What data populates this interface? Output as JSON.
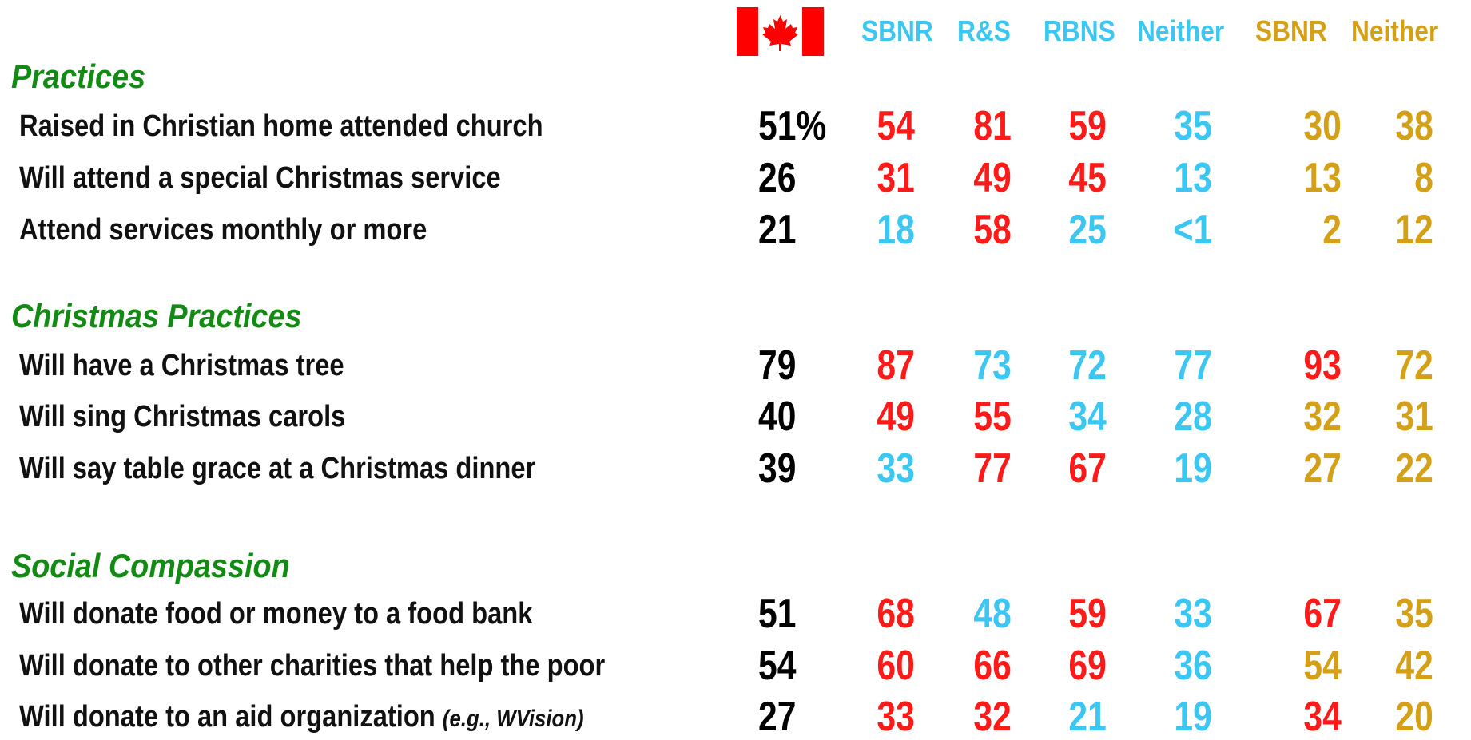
{
  "header": {
    "columns": [
      {
        "text": "SBNR",
        "color": "#3cc6f2"
      },
      {
        "text": "R&S",
        "color": "#3cc6f2"
      },
      {
        "text": "RBNS",
        "color": "#3cc6f2"
      },
      {
        "text": "Neither",
        "color": "#3cc6f2"
      },
      {
        "text": "SBNR",
        "color": "#d4a017"
      },
      {
        "text": "Neither",
        "color": "#d4a017"
      }
    ]
  },
  "sections": [
    {
      "title": "Practices",
      "rows": [
        {
          "label": "Raised in Christian home attended church",
          "total": "51%",
          "values": [
            "54",
            "81",
            "59",
            "35",
            "30",
            "38"
          ],
          "colors": [
            "#ff1a1a",
            "#ff1a1a",
            "#ff1a1a",
            "#3cc6f2",
            "#d4a017",
            "#d4a017"
          ]
        },
        {
          "label": "Will attend a special Christmas service",
          "total": "26",
          "values": [
            "31",
            "49",
            "45",
            "13",
            "13",
            "8"
          ],
          "colors": [
            "#ff1a1a",
            "#ff1a1a",
            "#ff1a1a",
            "#3cc6f2",
            "#d4a017",
            "#d4a017"
          ]
        },
        {
          "label": "Attend services monthly or more",
          "total": "21",
          "values": [
            "18",
            "58",
            "25",
            "<1",
            "2",
            "12"
          ],
          "colors": [
            "#3cc6f2",
            "#ff1a1a",
            "#3cc6f2",
            "#3cc6f2",
            "#d4a017",
            "#d4a017"
          ]
        }
      ]
    },
    {
      "title": "Christmas Practices",
      "rows": [
        {
          "label": "Will have a Christmas tree",
          "total": "79",
          "values": [
            "87",
            "73",
            "72",
            "77",
            "93",
            "72"
          ],
          "colors": [
            "#ff1a1a",
            "#3cc6f2",
            "#3cc6f2",
            "#3cc6f2",
            "#ff1a1a",
            "#d4a017"
          ]
        },
        {
          "label": "Will sing Christmas carols",
          "total": "40",
          "values": [
            "49",
            "55",
            "34",
            "28",
            "32",
            "31"
          ],
          "colors": [
            "#ff1a1a",
            "#ff1a1a",
            "#3cc6f2",
            "#3cc6f2",
            "#d4a017",
            "#d4a017"
          ]
        },
        {
          "label": "Will say table grace at a Christmas dinner",
          "total": "39",
          "values": [
            "33",
            "77",
            "67",
            "19",
            "27",
            "22"
          ],
          "colors": [
            "#3cc6f2",
            "#ff1a1a",
            "#ff1a1a",
            "#3cc6f2",
            "#d4a017",
            "#d4a017"
          ]
        }
      ]
    },
    {
      "title": "Social Compassion",
      "rows": [
        {
          "label": "Will donate food or money to a food bank",
          "total": "51",
          "values": [
            "68",
            "48",
            "59",
            "33",
            "67",
            "35"
          ],
          "colors": [
            "#ff1a1a",
            "#3cc6f2",
            "#ff1a1a",
            "#3cc6f2",
            "#ff1a1a",
            "#d4a017"
          ]
        },
        {
          "label": "Will donate to other charities that help the poor",
          "total": "54",
          "values": [
            "60",
            "66",
            "69",
            "36",
            "54",
            "42"
          ],
          "colors": [
            "#ff1a1a",
            "#ff1a1a",
            "#ff1a1a",
            "#3cc6f2",
            "#d4a017",
            "#d4a017"
          ]
        },
        {
          "label": "Will donate to an aid organization",
          "note": "(e.g., WVision)",
          "total": "27",
          "values": [
            "33",
            "32",
            "21",
            "19",
            "34",
            "20"
          ],
          "colors": [
            "#ff1a1a",
            "#ff1a1a",
            "#3cc6f2",
            "#3cc6f2",
            "#ff1a1a",
            "#d4a017"
          ]
        }
      ]
    }
  ]
}
